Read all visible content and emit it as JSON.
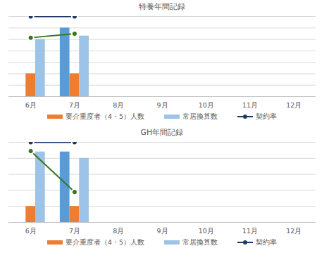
{
  "chart_data": [
    {
      "type": "bar",
      "title": "特養年間記録",
      "categories": [
        "6月",
        "7月",
        "8月",
        "9月",
        "10月",
        "11月",
        "12月"
      ],
      "series": [
        {
          "type": "bar",
          "color": "#5B9BD5",
          "values": [
            null,
            6.0,
            null,
            null,
            null,
            null,
            null
          ]
        },
        {
          "name": "要介重度者（4・5）人数",
          "type": "bar",
          "color": "#ED7D31",
          "values": [
            2.0,
            2.0,
            null,
            null,
            null,
            null,
            null
          ]
        },
        {
          "name": "常居換算数",
          "type": "bar",
          "color": "#9DC3E6",
          "values": [
            5.0,
            5.3,
            null,
            null,
            null,
            null,
            null
          ]
        },
        {
          "name": "契約率",
          "type": "line",
          "color": "#1F3864",
          "marker": "circle",
          "values": [
            7,
            7,
            null,
            null,
            null,
            null,
            null
          ]
        },
        {
          "type": "line",
          "color": "#38761D",
          "marker": "circle",
          "values": [
            5.15,
            5.5,
            null,
            null,
            null,
            null,
            null
          ]
        }
      ],
      "ylim": [
        0,
        7
      ],
      "yticks": [
        0,
        1,
        2,
        3,
        4,
        5,
        6,
        7
      ],
      "grid": true,
      "tick_labels": "x",
      "legend": "bottom"
    },
    {
      "type": "bar",
      "title": "GH年間記録",
      "categories": [
        "6月",
        "7月",
        "8月",
        "9月",
        "10月",
        "11月",
        "12月"
      ],
      "series": [
        {
          "type": "bar",
          "color": "#5B9BD5",
          "values": [
            null,
            4.4,
            null,
            null,
            null,
            null,
            null
          ]
        },
        {
          "name": "要介重度者（4・5）人数",
          "type": "bar",
          "color": "#ED7D31",
          "values": [
            1.0,
            1.0,
            null,
            null,
            null,
            null,
            null
          ]
        },
        {
          "name": "常居換算数",
          "type": "bar",
          "color": "#9DC3E6",
          "values": [
            4.4,
            4.0,
            null,
            null,
            null,
            null,
            null
          ]
        },
        {
          "name": "契約率",
          "type": "line",
          "color": "#1F3864",
          "marker": "circle",
          "values": [
            5,
            5,
            null,
            null,
            null,
            null,
            null
          ]
        },
        {
          "type": "line",
          "color": "#38761D",
          "marker": "circle",
          "values": [
            4.45,
            1.9,
            null,
            null,
            null,
            null,
            null
          ]
        }
      ],
      "ylim": [
        0,
        5
      ],
      "yticks": [
        0,
        1,
        2,
        3,
        4,
        5
      ],
      "grid": true,
      "tick_labels": "x",
      "legend": "bottom"
    }
  ]
}
